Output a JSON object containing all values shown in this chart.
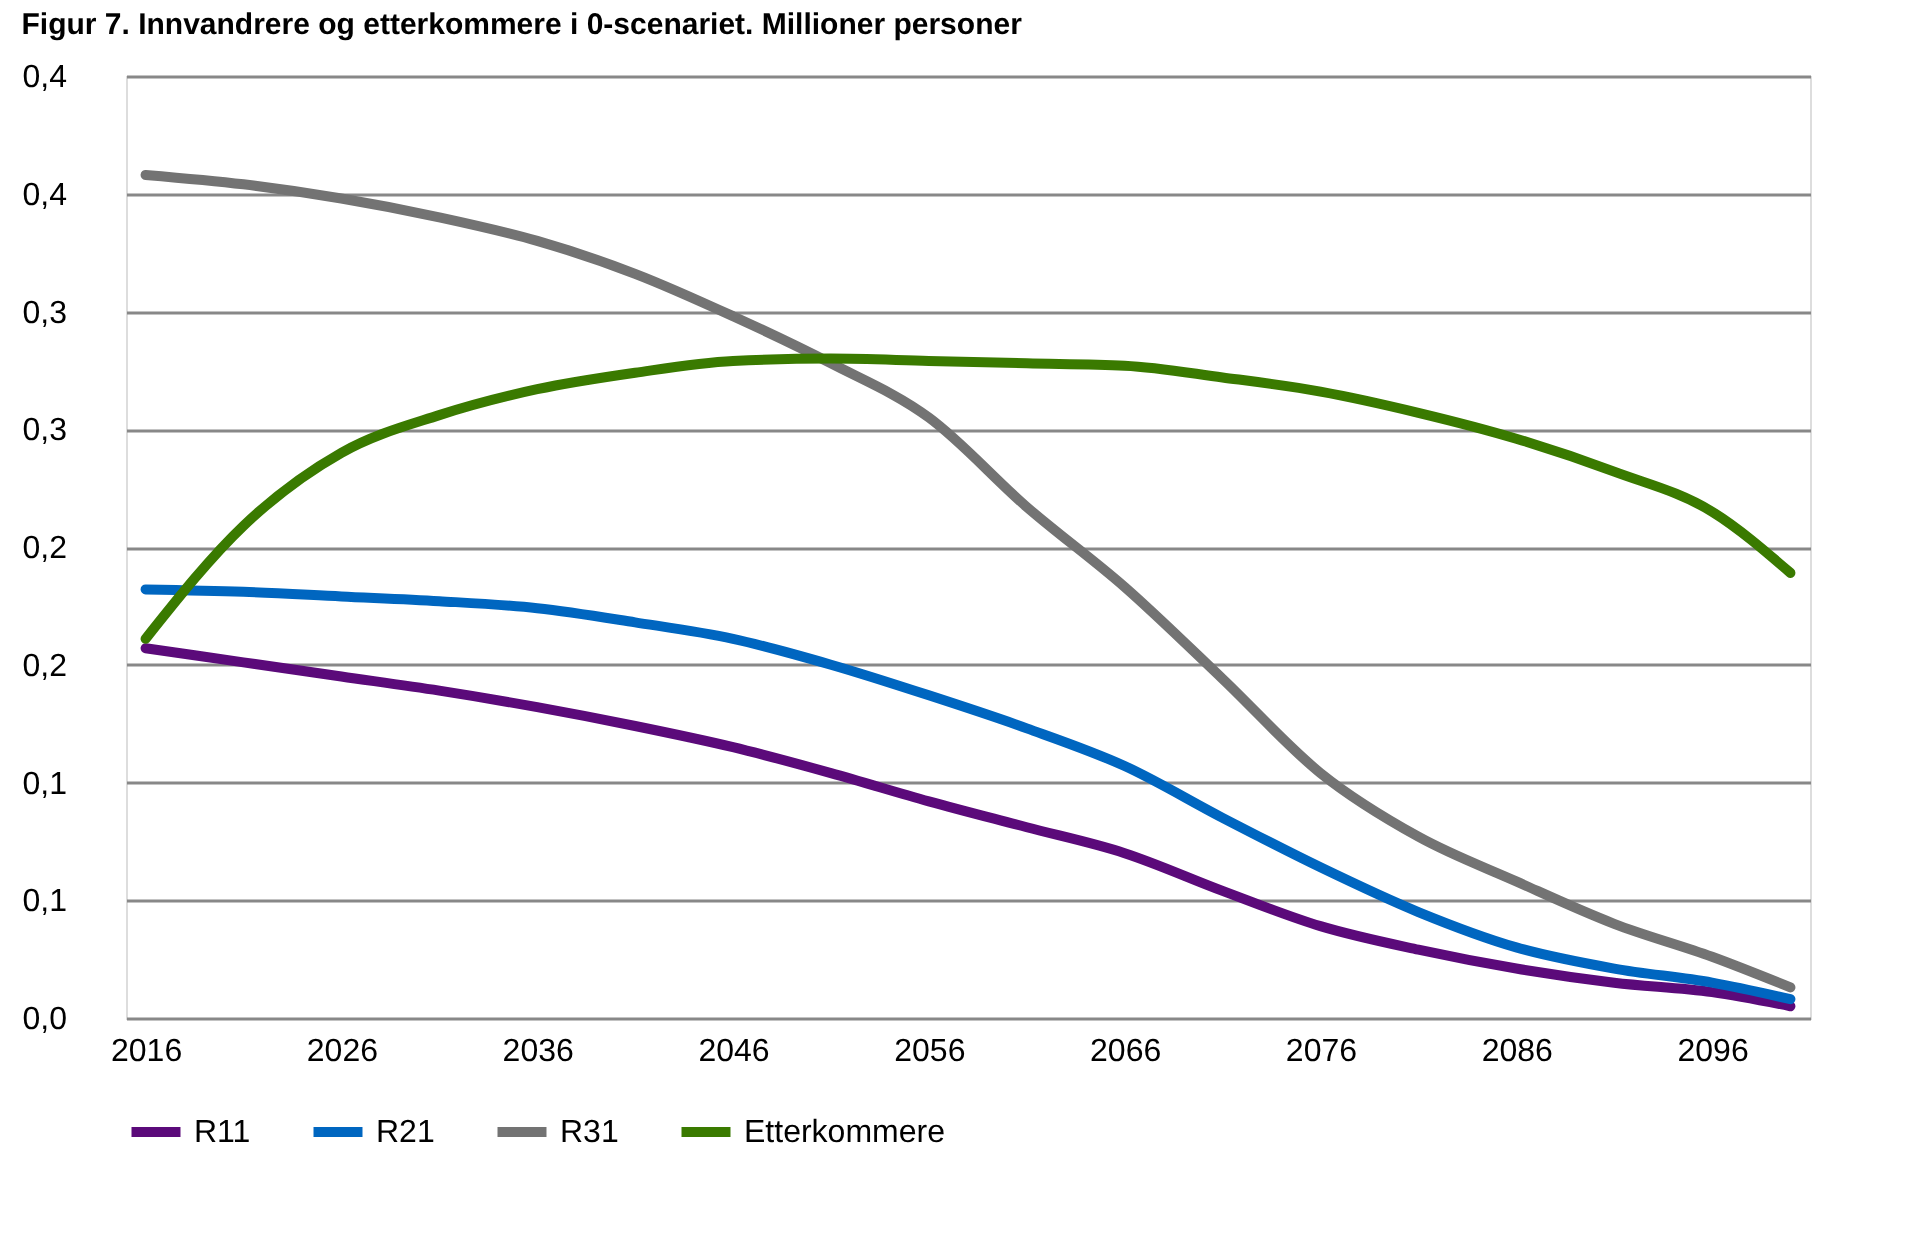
{
  "chart_data": {
    "type": "line",
    "title": "Figur 7. Innvandrere og etterkommere i 0-scenariet. Millioner personer",
    "x": [
      2016,
      2021,
      2026,
      2031,
      2036,
      2041,
      2046,
      2051,
      2056,
      2061,
      2066,
      2071,
      2076,
      2081,
      2086,
      2091,
      2096,
      2100
    ],
    "series": [
      {
        "name": "R11",
        "color": "#5b0a7a",
        "values": [
          0.157,
          0.151,
          0.145,
          0.139,
          0.132,
          0.124,
          0.115,
          0.104,
          0.092,
          0.081,
          0.07,
          0.054,
          0.039,
          0.029,
          0.021,
          0.015,
          0.011,
          0.005
        ]
      },
      {
        "name": "R21",
        "color": "#0066c0",
        "values": [
          0.182,
          0.181,
          0.179,
          0.177,
          0.174,
          0.168,
          0.161,
          0.15,
          0.137,
          0.123,
          0.107,
          0.085,
          0.064,
          0.045,
          0.03,
          0.021,
          0.015,
          0.008
        ]
      },
      {
        "name": "R31",
        "color": "#737373",
        "values": [
          0.358,
          0.354,
          0.348,
          0.34,
          0.33,
          0.316,
          0.298,
          0.278,
          0.255,
          0.217,
          0.183,
          0.144,
          0.104,
          0.077,
          0.058,
          0.04,
          0.026,
          0.013
        ]
      },
      {
        "name": "Etterkommere",
        "color": "#3a7a00",
        "values": [
          0.161,
          0.209,
          0.24,
          0.256,
          0.267,
          0.274,
          0.279,
          0.28,
          0.279,
          0.278,
          0.277,
          0.272,
          0.266,
          0.257,
          0.246,
          0.232,
          0.215,
          0.189
        ]
      }
    ],
    "xlim": [
      2015,
      2101
    ],
    "xticks": [
      2016,
      2026,
      2036,
      2046,
      2056,
      2066,
      2076,
      2086,
      2096
    ],
    "ylim": [
      0,
      0.4
    ],
    "yticks": [
      {
        "value": 0,
        "label": "0,0"
      },
      {
        "value": 0.05,
        "label": "0,1"
      },
      {
        "value": 0.1,
        "label": "0,1"
      },
      {
        "value": 0.15,
        "label": "0,2"
      },
      {
        "value": 0.2,
        "label": "0,2"
      },
      {
        "value": 0.25,
        "label": "0,3"
      },
      {
        "value": 0.3,
        "label": "0,3"
      },
      {
        "value": 0.35,
        "label": "0,4"
      },
      {
        "value": 0.4,
        "label": "0,4"
      }
    ],
    "grid": "y",
    "legend": "bottom",
    "marker": "none",
    "line_style": "solid"
  }
}
